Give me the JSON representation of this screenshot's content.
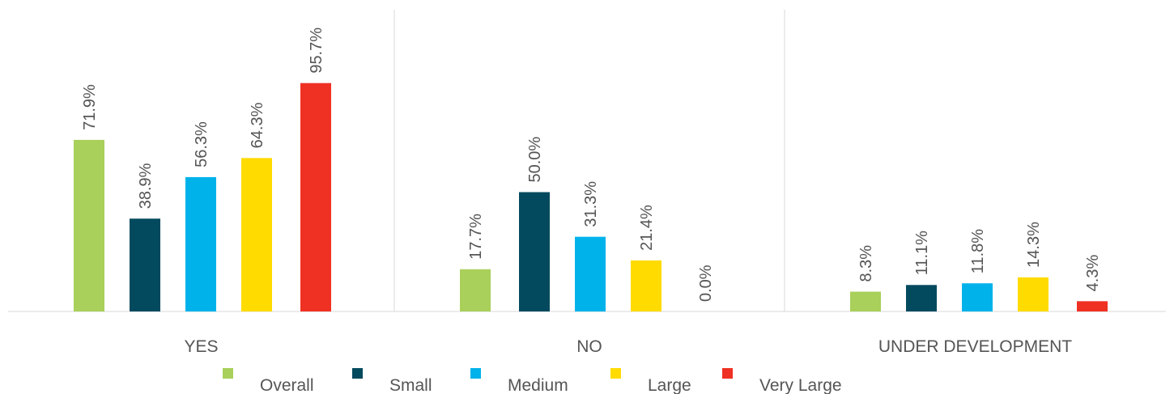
{
  "chart_data": {
    "type": "bar",
    "categories": [
      "YES",
      "NO",
      "UNDER DEVELOPMENT"
    ],
    "series": [
      {
        "name": "Overall",
        "color": "#a8d05a",
        "values": [
          71.9,
          17.7,
          8.3
        ],
        "labels": [
          "71.9%",
          "17.7%",
          "8.3%"
        ]
      },
      {
        "name": "Small",
        "color": "#034a5e",
        "values": [
          38.9,
          50.0,
          11.1
        ],
        "labels": [
          "38.9%",
          "50.0%",
          "11.1%"
        ]
      },
      {
        "name": "Medium",
        "color": "#00b2ea",
        "values": [
          56.3,
          31.3,
          11.8
        ],
        "labels": [
          "56.3%",
          "31.3%",
          "11.8%"
        ]
      },
      {
        "name": "Large",
        "color": "#ffdb00",
        "values": [
          64.3,
          21.4,
          14.3
        ],
        "labels": [
          "64.3%",
          "21.4%",
          "14.3%"
        ]
      },
      {
        "name": "Very Large",
        "color": "#ef3123",
        "values": [
          95.7,
          0.0,
          4.3
        ],
        "labels": [
          "95.7%",
          "0.0%",
          "4.3%"
        ]
      }
    ],
    "ylim": [
      0,
      100
    ],
    "legend_position": "bottom",
    "grid": false
  }
}
